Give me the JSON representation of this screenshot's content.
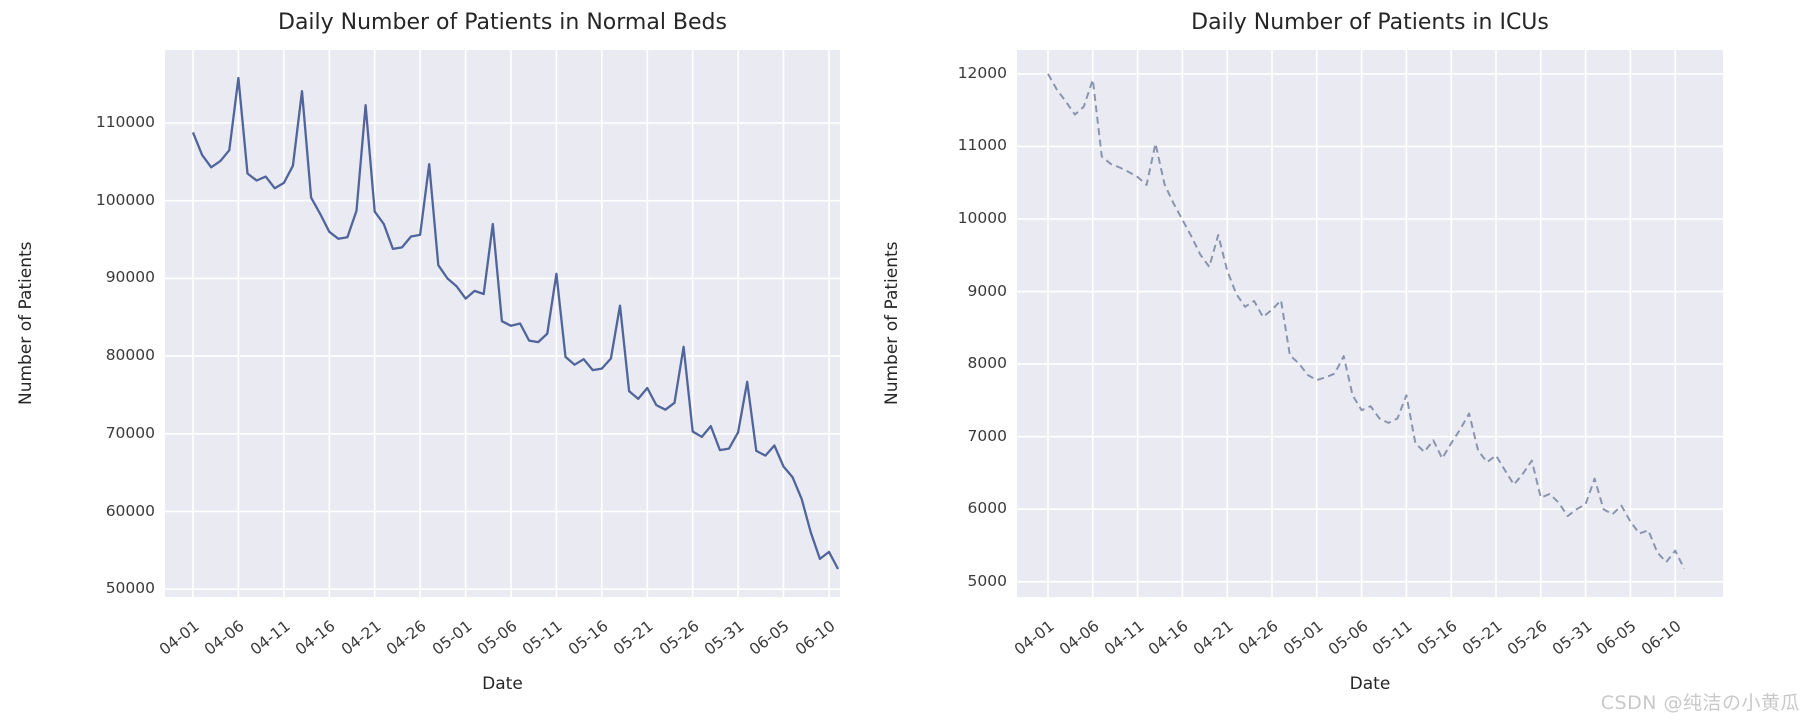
{
  "page": {
    "watermark": "CSDN @纯洁の小黄瓜"
  },
  "chart_data": [
    {
      "type": "line",
      "title": "Daily Number of Patients in Normal Beds",
      "xlabel": "Date",
      "ylabel": "Number of Patients",
      "legend": null,
      "grid": true,
      "background_color": "#eaeaf2",
      "line_color": "#50659b",
      "line_style": "solid",
      "ylim": [
        49000,
        119400
      ],
      "y_ticks": [
        50000,
        60000,
        70000,
        80000,
        90000,
        100000,
        110000
      ],
      "x_ticks": [
        "04-01",
        "04-06",
        "04-11",
        "04-16",
        "04-21",
        "04-26",
        "05-01",
        "05-06",
        "05-11",
        "05-16",
        "05-21",
        "05-26",
        "05-31",
        "06-05",
        "06-10"
      ],
      "x": [
        "04-01",
        "04-02",
        "04-03",
        "04-04",
        "04-05",
        "04-06",
        "04-07",
        "04-08",
        "04-09",
        "04-10",
        "04-11",
        "04-12",
        "04-13",
        "04-14",
        "04-15",
        "04-16",
        "04-17",
        "04-18",
        "04-19",
        "04-20",
        "04-21",
        "04-22",
        "04-23",
        "04-24",
        "04-25",
        "04-26",
        "04-27",
        "04-28",
        "04-29",
        "04-30",
        "05-01",
        "05-02",
        "05-03",
        "05-04",
        "05-05",
        "05-06",
        "05-07",
        "05-08",
        "05-09",
        "05-10",
        "05-11",
        "05-12",
        "05-13",
        "05-14",
        "05-15",
        "05-16",
        "05-17",
        "05-18",
        "05-19",
        "05-20",
        "05-21",
        "05-22",
        "05-23",
        "05-24",
        "05-25",
        "05-26",
        "05-27",
        "05-28",
        "05-29",
        "05-30",
        "05-31",
        "06-01",
        "06-02",
        "06-03",
        "06-04",
        "06-05",
        "06-06",
        "06-07",
        "06-08",
        "06-09",
        "06-10",
        "06-11"
      ],
      "values": [
        108800,
        105900,
        104300,
        105100,
        106500,
        115800,
        103500,
        102600,
        103100,
        101600,
        102300,
        104500,
        114100,
        100400,
        98300,
        96000,
        95100,
        95300,
        98700,
        112300,
        98600,
        97000,
        93800,
        94000,
        95400,
        95600,
        104700,
        91700,
        90000,
        89000,
        87400,
        88400,
        88000,
        97000,
        84500,
        83900,
        84200,
        82000,
        81800,
        82900,
        90600,
        79900,
        78900,
        79600,
        78200,
        78400,
        79700,
        86500,
        75500,
        74500,
        75900,
        73700,
        73100,
        74000,
        81200,
        70300,
        69600,
        71000,
        67900,
        68100,
        70200,
        76700,
        67800,
        67200,
        68500,
        65800,
        64400,
        61600,
        57300,
        53900,
        54800,
        52600
      ]
    },
    {
      "type": "line",
      "title": "Daily Number of Patients in ICUs",
      "xlabel": "Date",
      "ylabel": "Number of Patients",
      "legend": null,
      "grid": true,
      "background_color": "#eaeaf2",
      "line_color": "#8a95ad",
      "line_style": "dashed",
      "ylim": [
        4790,
        12330
      ],
      "y_ticks": [
        5000,
        6000,
        7000,
        8000,
        9000,
        10000,
        11000,
        12000
      ],
      "x_ticks": [
        "04-01",
        "04-06",
        "04-11",
        "04-16",
        "04-21",
        "04-26",
        "05-01",
        "05-06",
        "05-11",
        "05-16",
        "05-21",
        "05-26",
        "05-31",
        "06-05",
        "06-10"
      ],
      "x": [
        "04-01",
        "04-02",
        "04-03",
        "04-04",
        "04-05",
        "04-06",
        "04-07",
        "04-08",
        "04-09",
        "04-10",
        "04-11",
        "04-12",
        "04-13",
        "04-14",
        "04-15",
        "04-16",
        "04-17",
        "04-18",
        "04-19",
        "04-20",
        "04-21",
        "04-22",
        "04-23",
        "04-24",
        "04-25",
        "04-26",
        "04-27",
        "04-28",
        "04-29",
        "04-30",
        "05-01",
        "05-02",
        "05-03",
        "05-04",
        "05-05",
        "05-06",
        "05-07",
        "05-08",
        "05-09",
        "05-10",
        "05-11",
        "05-12",
        "05-13",
        "05-14",
        "05-15",
        "05-16",
        "05-17",
        "05-18",
        "05-19",
        "05-20",
        "05-21",
        "05-22",
        "05-23",
        "05-24",
        "05-25",
        "05-26",
        "05-27",
        "05-28",
        "05-29",
        "05-30",
        "05-31",
        "06-01",
        "06-02",
        "06-03",
        "06-04",
        "06-05",
        "06-06",
        "06-07",
        "06-08",
        "06-09",
        "06-10",
        "06-11"
      ],
      "values": [
        12000,
        11780,
        11620,
        11440,
        11550,
        11920,
        10860,
        10760,
        10710,
        10650,
        10580,
        10470,
        11040,
        10480,
        10220,
        9990,
        9760,
        9510,
        9340,
        9780,
        9290,
        8970,
        8790,
        8870,
        8650,
        8750,
        8880,
        8120,
        8010,
        7850,
        7780,
        7820,
        7870,
        8110,
        7570,
        7365,
        7420,
        7250,
        7190,
        7250,
        7570,
        6910,
        6790,
        6950,
        6700,
        6910,
        7100,
        7320,
        6810,
        6650,
        6740,
        6535,
        6340,
        6490,
        6670,
        6160,
        6210,
        6090,
        5905,
        6000,
        6070,
        6420,
        6000,
        5930,
        6050,
        5830,
        5665,
        5710,
        5405,
        5270,
        5430,
        5180
      ]
    }
  ]
}
